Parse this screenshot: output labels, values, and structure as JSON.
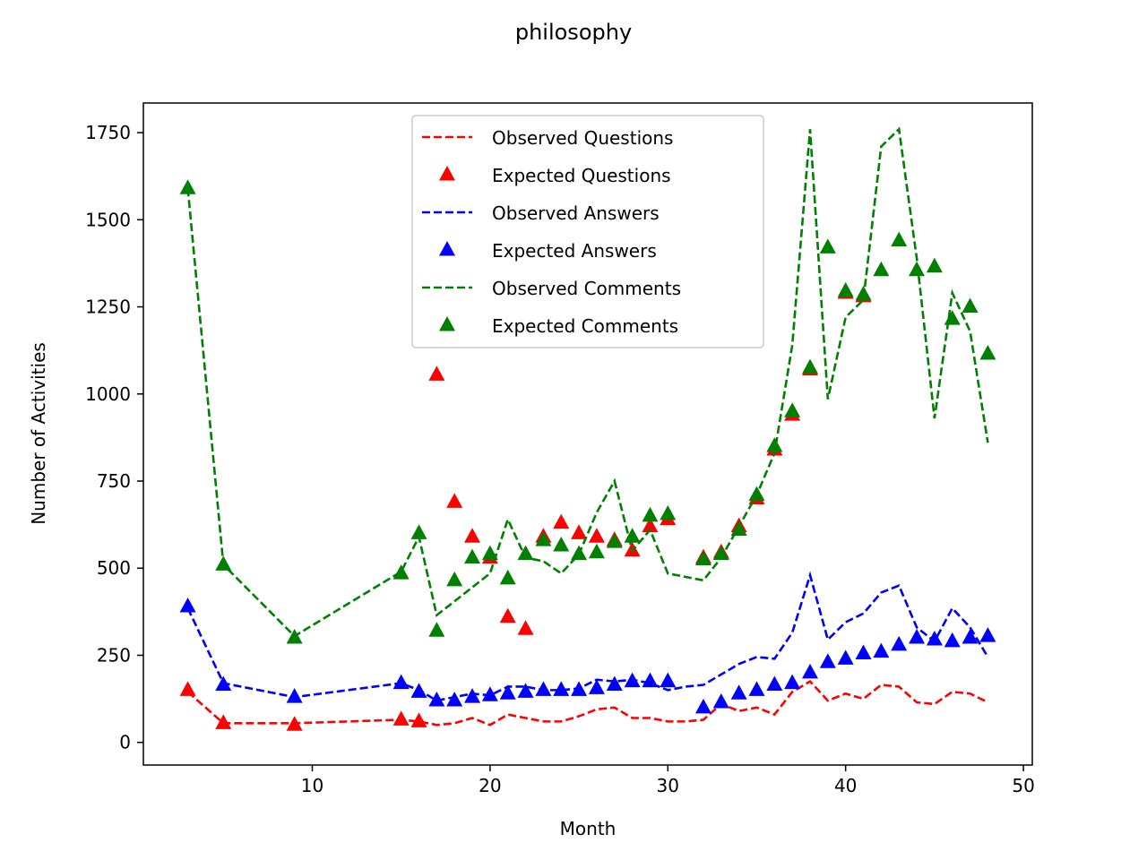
{
  "chart_data": {
    "type": "line",
    "title": "philosophy",
    "xlabel": "Month",
    "ylabel": "Number of Activities",
    "xlim": [
      0.5,
      50.5
    ],
    "ylim": [
      -65,
      1835
    ],
    "xticks": [
      10,
      20,
      30,
      40,
      50
    ],
    "yticks": [
      0,
      250,
      500,
      750,
      1000,
      1250,
      1500,
      1750
    ],
    "grid": false,
    "legend_position": "upper center",
    "series": [
      {
        "name": "Observed Questions",
        "kind": "dashed-line",
        "color": "#ff0000",
        "x": [
          3,
          5,
          9,
          15,
          16,
          17,
          18,
          19,
          20,
          21,
          22,
          23,
          24,
          25,
          26,
          27,
          28,
          29,
          30,
          31,
          32,
          33,
          34,
          35,
          36,
          37,
          38,
          39,
          40,
          41,
          42,
          43,
          44,
          45,
          46,
          47,
          48
        ],
        "y": [
          145,
          55,
          55,
          65,
          60,
          50,
          55,
          70,
          50,
          80,
          70,
          60,
          60,
          75,
          95,
          100,
          70,
          70,
          60,
          60,
          65,
          110,
          90,
          100,
          80,
          145,
          175,
          120,
          140,
          125,
          165,
          160,
          115,
          110,
          145,
          140,
          115
        ]
      },
      {
        "name": "Expected Questions",
        "kind": "markers",
        "color": "#ff0000",
        "x": [
          3,
          5,
          9,
          15,
          16,
          17,
          18,
          19,
          20,
          21,
          22,
          23,
          24,
          25,
          26,
          27,
          28,
          29,
          30,
          32,
          33,
          34,
          35,
          36,
          37,
          38,
          40,
          41
        ],
        "y": [
          150,
          55,
          50,
          65,
          60,
          1055,
          690,
          590,
          530,
          360,
          325,
          590,
          630,
          600,
          590,
          580,
          550,
          620,
          640,
          530,
          545,
          620,
          700,
          840,
          940,
          1070,
          1290,
          1280
        ]
      },
      {
        "name": "Observed Answers",
        "kind": "dashed-line",
        "color": "#0000ff",
        "x": [
          3,
          5,
          9,
          15,
          16,
          17,
          18,
          19,
          20,
          21,
          22,
          23,
          24,
          25,
          26,
          27,
          28,
          29,
          30,
          31,
          32,
          33,
          34,
          35,
          36,
          37,
          38,
          39,
          40,
          41,
          42,
          43,
          44,
          45,
          46,
          47,
          48
        ],
        "y": [
          385,
          170,
          130,
          170,
          150,
          120,
          130,
          140,
          135,
          160,
          160,
          150,
          150,
          155,
          180,
          175,
          180,
          170,
          150,
          160,
          165,
          195,
          225,
          245,
          240,
          315,
          480,
          295,
          345,
          370,
          430,
          450,
          330,
          290,
          385,
          330,
          245
        ]
      },
      {
        "name": "Expected Answers",
        "kind": "markers",
        "color": "#0000ff",
        "x": [
          3,
          5,
          9,
          15,
          16,
          17,
          18,
          19,
          20,
          21,
          22,
          23,
          24,
          25,
          26,
          27,
          28,
          29,
          30,
          32,
          33,
          34,
          35,
          36,
          37,
          38,
          39,
          40,
          41,
          42,
          43,
          44,
          45,
          46,
          47,
          48
        ],
        "y": [
          390,
          165,
          130,
          170,
          145,
          120,
          120,
          130,
          135,
          140,
          145,
          150,
          150,
          150,
          155,
          165,
          175,
          175,
          175,
          100,
          115,
          140,
          150,
          165,
          170,
          200,
          230,
          240,
          255,
          260,
          280,
          300,
          295,
          290,
          300,
          305
        ]
      },
      {
        "name": "Observed Comments",
        "kind": "dashed-line",
        "color": "#008000",
        "x": [
          3,
          5,
          9,
          15,
          16,
          17,
          18,
          19,
          20,
          21,
          22,
          23,
          24,
          25,
          26,
          27,
          28,
          29,
          30,
          31,
          32,
          33,
          34,
          35,
          36,
          37,
          38,
          39,
          40,
          41,
          42,
          43,
          44,
          45,
          46,
          47,
          48
        ],
        "y": [
          1590,
          510,
          305,
          490,
          590,
          365,
          405,
          445,
          485,
          640,
          530,
          520,
          485,
          540,
          660,
          750,
          550,
          610,
          485,
          475,
          465,
          530,
          620,
          710,
          830,
          1140,
          1760,
          985,
          1220,
          1270,
          1710,
          1760,
          1390,
          930,
          1290,
          1180,
          860
        ]
      },
      {
        "name": "Expected Comments",
        "kind": "markers",
        "color": "#008000",
        "x": [
          3,
          5,
          9,
          15,
          16,
          17,
          18,
          19,
          20,
          21,
          22,
          23,
          24,
          25,
          26,
          27,
          28,
          29,
          30,
          32,
          33,
          34,
          35,
          36,
          37,
          38,
          39,
          40,
          41,
          42,
          43,
          44,
          45,
          46,
          47,
          48
        ],
        "y": [
          1590,
          510,
          300,
          485,
          600,
          320,
          465,
          530,
          540,
          470,
          540,
          580,
          565,
          540,
          545,
          575,
          590,
          650,
          655,
          525,
          540,
          610,
          710,
          850,
          950,
          1075,
          1420,
          1295,
          1285,
          1355,
          1440,
          1355,
          1365,
          1215,
          1250,
          1115
        ]
      }
    ]
  }
}
